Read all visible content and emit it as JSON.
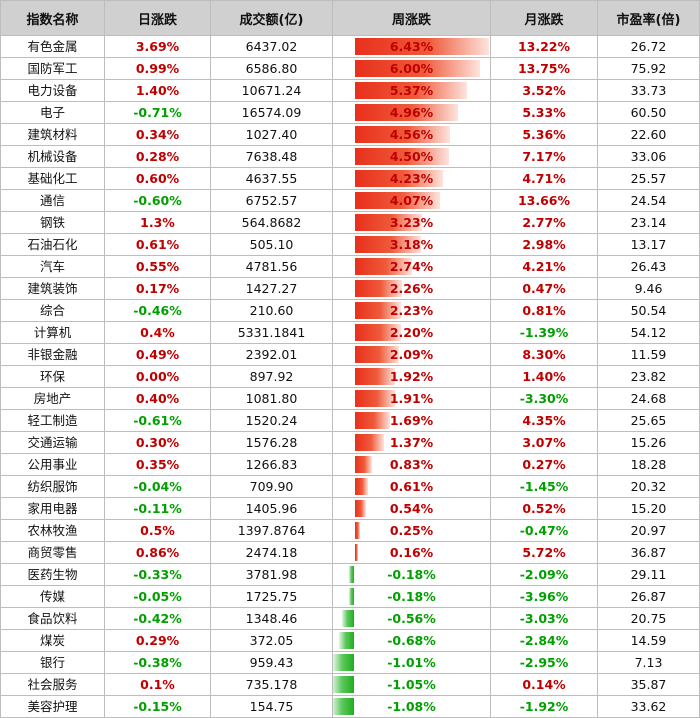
{
  "headers": [
    "指数名称",
    "日涨跌",
    "成交额(亿)",
    "周涨跌",
    "月涨跌",
    "市盈率(倍)"
  ],
  "max_abs_week_pct": 6.43,
  "rows": [
    {
      "name": "有色金属",
      "daily": "3.69%",
      "volume": "6437.02",
      "weekly": "6.43%",
      "weekly_pct": 6.43,
      "monthly": "13.22%",
      "pe": "26.72"
    },
    {
      "name": "国防军工",
      "daily": "0.99%",
      "volume": "6586.80",
      "weekly": "6.00%",
      "weekly_pct": 6.0,
      "monthly": "13.75%",
      "pe": "75.92"
    },
    {
      "name": "电力设备",
      "daily": "1.40%",
      "volume": "10671.24",
      "weekly": "5.37%",
      "weekly_pct": 5.37,
      "monthly": "3.52%",
      "pe": "33.73"
    },
    {
      "name": "电子",
      "daily": "-0.71%",
      "volume": "16574.09",
      "weekly": "4.96%",
      "weekly_pct": 4.96,
      "monthly": "5.33%",
      "pe": "60.50"
    },
    {
      "name": "建筑材料",
      "daily": "0.34%",
      "volume": "1027.40",
      "weekly": "4.56%",
      "weekly_pct": 4.56,
      "monthly": "5.36%",
      "pe": "22.60"
    },
    {
      "name": "机械设备",
      "daily": "0.28%",
      "volume": "7638.48",
      "weekly": "4.50%",
      "weekly_pct": 4.5,
      "monthly": "7.17%",
      "pe": "33.06"
    },
    {
      "name": "基础化工",
      "daily": "0.60%",
      "volume": "4637.55",
      "weekly": "4.23%",
      "weekly_pct": 4.23,
      "monthly": "4.71%",
      "pe": "25.57"
    },
    {
      "name": "通信",
      "daily": "-0.60%",
      "volume": "6752.57",
      "weekly": "4.07%",
      "weekly_pct": 4.07,
      "monthly": "13.66%",
      "pe": "24.54"
    },
    {
      "name": "钢铁",
      "daily": "1.3%",
      "volume": "564.8682",
      "weekly": "3.23%",
      "weekly_pct": 3.23,
      "monthly": "2.77%",
      "pe": "23.14"
    },
    {
      "name": "石油石化",
      "daily": "0.61%",
      "volume": "505.10",
      "weekly": "3.18%",
      "weekly_pct": 3.18,
      "monthly": "2.98%",
      "pe": "13.17"
    },
    {
      "name": "汽车",
      "daily": "0.55%",
      "volume": "4781.56",
      "weekly": "2.74%",
      "weekly_pct": 2.74,
      "monthly": "4.21%",
      "pe": "26.43"
    },
    {
      "name": "建筑装饰",
      "daily": "0.17%",
      "volume": "1427.27",
      "weekly": "2.26%",
      "weekly_pct": 2.26,
      "monthly": "0.47%",
      "pe": "9.46"
    },
    {
      "name": "综合",
      "daily": "-0.46%",
      "volume": "210.60",
      "weekly": "2.23%",
      "weekly_pct": 2.23,
      "monthly": "0.81%",
      "pe": "50.54"
    },
    {
      "name": "计算机",
      "daily": "0.4%",
      "volume": "5331.1841",
      "weekly": "2.20%",
      "weekly_pct": 2.2,
      "monthly": "-1.39%",
      "pe": "54.12"
    },
    {
      "name": "非银金融",
      "daily": "0.49%",
      "volume": "2392.01",
      "weekly": "2.09%",
      "weekly_pct": 2.09,
      "monthly": "8.30%",
      "pe": "11.59"
    },
    {
      "name": "环保",
      "daily": "0.00%",
      "volume": "897.92",
      "weekly": "1.92%",
      "weekly_pct": 1.92,
      "monthly": "1.40%",
      "pe": "23.82"
    },
    {
      "name": "房地产",
      "daily": "0.40%",
      "volume": "1081.80",
      "weekly": "1.91%",
      "weekly_pct": 1.91,
      "monthly": "-3.30%",
      "pe": "24.68"
    },
    {
      "name": "轻工制造",
      "daily": "-0.61%",
      "volume": "1520.24",
      "weekly": "1.69%",
      "weekly_pct": 1.69,
      "monthly": "4.35%",
      "pe": "25.65"
    },
    {
      "name": "交通运输",
      "daily": "0.30%",
      "volume": "1576.28",
      "weekly": "1.37%",
      "weekly_pct": 1.37,
      "monthly": "3.07%",
      "pe": "15.26"
    },
    {
      "name": "公用事业",
      "daily": "0.35%",
      "volume": "1266.83",
      "weekly": "0.83%",
      "weekly_pct": 0.83,
      "monthly": "0.27%",
      "pe": "18.28"
    },
    {
      "name": "纺织服饰",
      "daily": "-0.04%",
      "volume": "709.90",
      "weekly": "0.61%",
      "weekly_pct": 0.61,
      "monthly": "-1.45%",
      "pe": "20.32"
    },
    {
      "name": "家用电器",
      "daily": "-0.11%",
      "volume": "1405.96",
      "weekly": "0.54%",
      "weekly_pct": 0.54,
      "monthly": "0.52%",
      "pe": "15.20"
    },
    {
      "name": "农林牧渔",
      "daily": "0.5%",
      "volume": "1397.8764",
      "weekly": "0.25%",
      "weekly_pct": 0.25,
      "monthly": "-0.47%",
      "pe": "20.97"
    },
    {
      "name": "商贸零售",
      "daily": "0.86%",
      "volume": "2474.18",
      "weekly": "0.16%",
      "weekly_pct": 0.16,
      "monthly": "5.72%",
      "pe": "36.87"
    },
    {
      "name": "医药生物",
      "daily": "-0.33%",
      "volume": "3781.98",
      "weekly": "-0.18%",
      "weekly_pct": -0.18,
      "monthly": "-2.09%",
      "pe": "29.11"
    },
    {
      "name": "传媒",
      "daily": "-0.05%",
      "volume": "1725.75",
      "weekly": "-0.18%",
      "weekly_pct": -0.18,
      "monthly": "-3.96%",
      "pe": "26.87"
    },
    {
      "name": "食品饮料",
      "daily": "-0.42%",
      "volume": "1348.46",
      "weekly": "-0.56%",
      "weekly_pct": -0.56,
      "monthly": "-3.03%",
      "pe": "20.75"
    },
    {
      "name": "煤炭",
      "daily": "0.29%",
      "volume": "372.05",
      "weekly": "-0.68%",
      "weekly_pct": -0.68,
      "monthly": "-2.84%",
      "pe": "14.59"
    },
    {
      "name": "银行",
      "daily": "-0.38%",
      "volume": "959.43",
      "weekly": "-1.01%",
      "weekly_pct": -1.01,
      "monthly": "-2.95%",
      "pe": "7.13"
    },
    {
      "name": "社会服务",
      "daily": "0.1%",
      "volume": "735.178",
      "weekly": "-1.05%",
      "weekly_pct": -1.05,
      "monthly": "0.14%",
      "pe": "35.87"
    },
    {
      "name": "美容护理",
      "daily": "-0.15%",
      "volume": "154.75",
      "weekly": "-1.08%",
      "weekly_pct": -1.08,
      "monthly": "-1.92%",
      "pe": "33.62"
    }
  ]
}
